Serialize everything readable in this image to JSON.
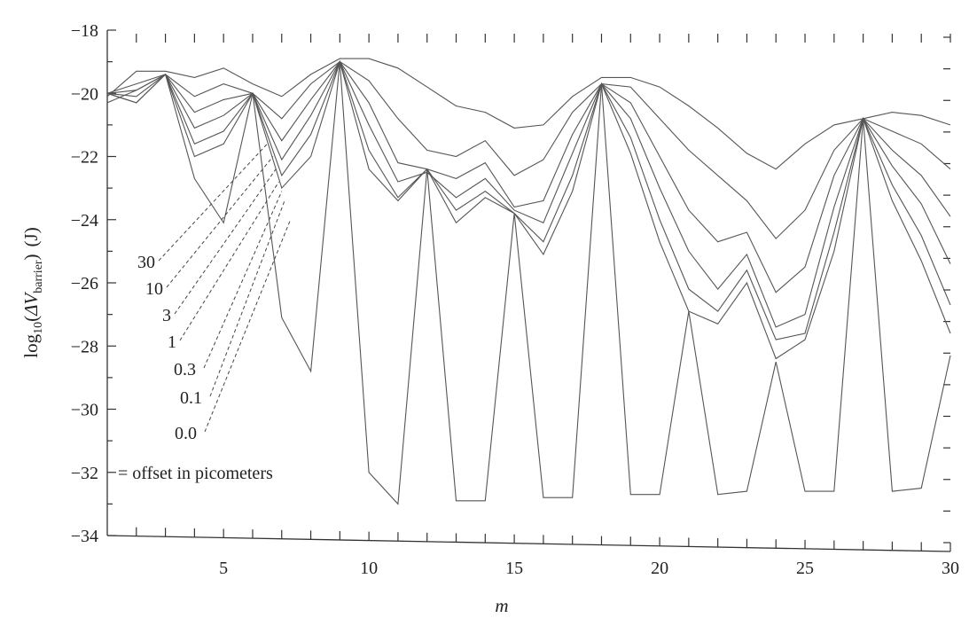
{
  "chart_data": {
    "type": "line",
    "xlabel": "m",
    "ylabel_main": "log",
    "ylabel_sub": "10",
    "ylabel_open": "(",
    "ylabel_sym": "ΔV",
    "ylabel_sym_sub": "barrier",
    "ylabel_close": ")",
    "ylabel_unit": "(J)",
    "xlim": [
      1,
      30
    ],
    "ylim": [
      -34,
      -18
    ],
    "x_ticks": [
      5,
      10,
      15,
      20,
      25,
      30
    ],
    "y_ticks": [
      -18,
      -20,
      -22,
      -24,
      -26,
      -28,
      -30,
      -32,
      -34
    ],
    "x_tick_labels": [
      "5",
      "10",
      "15",
      "20",
      "25",
      "30"
    ],
    "y_tick_labels": [
      "−18",
      "−20",
      "−22",
      "−24",
      "−26",
      "−28",
      "−30",
      "−32",
      "−34"
    ],
    "legend_title": "= offset in picometers",
    "grid": false,
    "series": [
      {
        "name": "30",
        "x": [
          1,
          2,
          3,
          4,
          5,
          6,
          7,
          8,
          9,
          10,
          11,
          12,
          13,
          14,
          15,
          16,
          17,
          18,
          19,
          20,
          21,
          22,
          23,
          24,
          25,
          26,
          27,
          28,
          29,
          30
        ],
        "y": [
          -20.1,
          -19.3,
          -19.3,
          -19.5,
          -19.2,
          -19.7,
          -20.1,
          -19.4,
          -18.9,
          -18.9,
          -19.2,
          -19.8,
          -20.4,
          -20.6,
          -21.1,
          -21.0,
          -20.1,
          -19.5,
          -19.5,
          -19.8,
          -20.4,
          -21.1,
          -21.9,
          -22.4,
          -21.6,
          -21.0,
          -20.8,
          -20.6,
          -20.7,
          -21.0
        ]
      },
      {
        "name": "10",
        "x": [
          1,
          2,
          3,
          4,
          5,
          6,
          7,
          8,
          9,
          10,
          11,
          12,
          13,
          14,
          15,
          16,
          17,
          18,
          19,
          20,
          21,
          22,
          23,
          24,
          25,
          26,
          27,
          28,
          29,
          30
        ],
        "y": [
          -20.0,
          -19.7,
          -19.4,
          -20.1,
          -19.7,
          -20.0,
          -20.8,
          -19.7,
          -19.0,
          -19.6,
          -20.8,
          -21.8,
          -22.0,
          -21.5,
          -22.6,
          -22.1,
          -20.6,
          -19.7,
          -19.8,
          -20.8,
          -21.8,
          -22.6,
          -23.4,
          -24.6,
          -23.7,
          -21.8,
          -20.8,
          -21.2,
          -21.6,
          -22.4
        ]
      },
      {
        "name": "3",
        "x": [
          1,
          2,
          3,
          4,
          5,
          6,
          7,
          8,
          9,
          10,
          11,
          12,
          13,
          14,
          15,
          16,
          17,
          18,
          19,
          20,
          21,
          22,
          23,
          24,
          25,
          26,
          27,
          28,
          29,
          30
        ],
        "y": [
          -20.0,
          -19.9,
          -19.4,
          -20.6,
          -20.2,
          -20.0,
          -21.5,
          -20.2,
          -19.0,
          -20.3,
          -22.2,
          -22.4,
          -22.7,
          -22.2,
          -23.6,
          -23.4,
          -21.3,
          -19.7,
          -20.3,
          -22.0,
          -23.7,
          -24.7,
          -24.4,
          -26.3,
          -25.5,
          -22.6,
          -20.8,
          -21.8,
          -22.6,
          -23.9
        ]
      },
      {
        "name": "1",
        "x": [
          1,
          2,
          3,
          4,
          5,
          6,
          7,
          8,
          9,
          10,
          11,
          12,
          13,
          14,
          15,
          16,
          17,
          18,
          19,
          20,
          21,
          22,
          23,
          24,
          25,
          26,
          27,
          28,
          29,
          30
        ],
        "y": [
          -20.0,
          -20.1,
          -19.4,
          -21.1,
          -20.7,
          -20.0,
          -22.1,
          -20.7,
          -19.0,
          -21.0,
          -22.8,
          -22.5,
          -23.3,
          -22.7,
          -23.7,
          -24.1,
          -21.9,
          -19.7,
          -20.8,
          -23.0,
          -25.0,
          -26.2,
          -25.1,
          -27.4,
          -27.0,
          -23.6,
          -20.8,
          -22.3,
          -23.5,
          -25.4
        ]
      },
      {
        "name": "0.3",
        "x": [
          1,
          2,
          3,
          4,
          5,
          6,
          7,
          8,
          9,
          10,
          11,
          12,
          13,
          14,
          15,
          16,
          17,
          18,
          19,
          20,
          21,
          22,
          23,
          24,
          25,
          26,
          27,
          28,
          29,
          30
        ],
        "y": [
          -20.0,
          -20.3,
          -19.4,
          -21.6,
          -21.2,
          -20.0,
          -22.6,
          -21.3,
          -19.0,
          -21.8,
          -23.3,
          -22.4,
          -23.7,
          -23.1,
          -23.8,
          -24.7,
          -22.6,
          -19.7,
          -21.4,
          -24.0,
          -26.2,
          -26.9,
          -25.6,
          -27.8,
          -27.6,
          -24.4,
          -20.8,
          -22.9,
          -24.5,
          -26.7
        ]
      },
      {
        "name": "0.1",
        "x": [
          1,
          2,
          3,
          4,
          5,
          6,
          7,
          8,
          9,
          10,
          11,
          12,
          13,
          14,
          15,
          16,
          17,
          18,
          19,
          20,
          21,
          22,
          23,
          24,
          25,
          26,
          27,
          28,
          29,
          30
        ],
        "y": [
          -20.0,
          -20.3,
          -19.4,
          -22.0,
          -21.6,
          -20.0,
          -23.0,
          -22.0,
          -19.0,
          -22.4,
          -23.4,
          -22.4,
          -24.1,
          -23.3,
          -23.8,
          -25.1,
          -23.1,
          -19.7,
          -21.9,
          -24.7,
          -26.9,
          -27.3,
          -26.0,
          -28.4,
          -27.8,
          -25.0,
          -20.8,
          -23.4,
          -25.3,
          -27.6
        ]
      },
      {
        "name": "0.0",
        "x": [
          1,
          2,
          3,
          4,
          5,
          6,
          7,
          8,
          9,
          10,
          11,
          12,
          13,
          14,
          15,
          16,
          17,
          18,
          19,
          20,
          21,
          22,
          23,
          24,
          25,
          26,
          27,
          28,
          29,
          30
        ],
        "y": [
          -20.3,
          -19.9,
          -19.4,
          -22.7,
          -24.1,
          -20.0,
          -27.1,
          -28.8,
          -19.0,
          -32.0,
          -33.0,
          -22.4,
          -32.9,
          -32.9,
          -23.8,
          -32.8,
          -32.8,
          -19.7,
          -32.7,
          -32.7,
          -26.9,
          -32.7,
          -32.6,
          -28.5,
          -32.6,
          -32.6,
          -20.8,
          -32.6,
          -32.5,
          -28.3
        ]
      }
    ]
  }
}
